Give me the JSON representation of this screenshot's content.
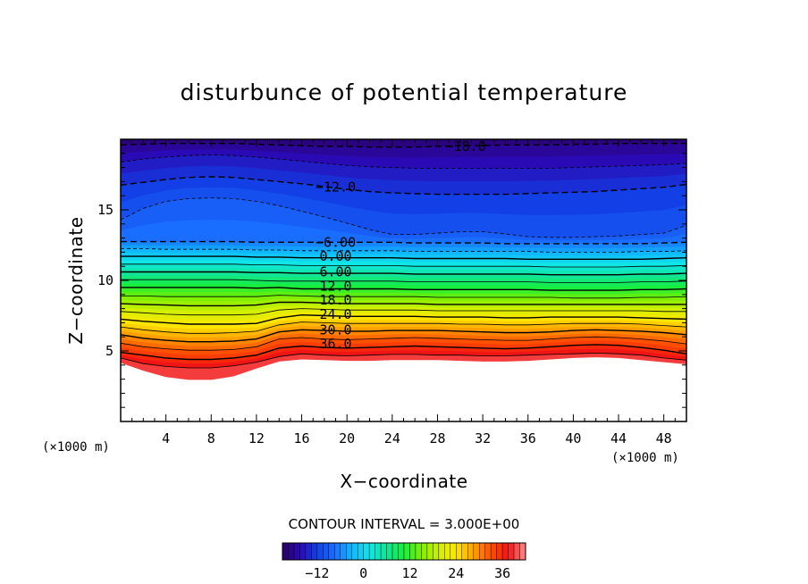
{
  "chart_data": {
    "type": "heatmap",
    "title": "disturbunce of potential temperature",
    "xlabel": "X−coordinate",
    "ylabel": "Z−coordinate",
    "x_unit": "(×1000 m)",
    "y_unit": "(×1000 m)",
    "xlim": [
      0,
      50
    ],
    "ylim": [
      0,
      20
    ],
    "x_ticks": [
      4,
      8,
      12,
      16,
      20,
      24,
      28,
      32,
      36,
      40,
      44,
      48
    ],
    "y_ticks": [
      5,
      10,
      15
    ],
    "contour_interval_text": "CONTOUR INTERVAL = 3.000E+00",
    "contour_labels": [
      {
        "text": "−18.0",
        "x": 30.5,
        "z": 19.5
      },
      {
        "text": "−12.0",
        "x": 19.0,
        "z": 16.6
      },
      {
        "text": "−6.00",
        "x": 19.0,
        "z": 12.7
      },
      {
        "text": "0.00",
        "x": 19.0,
        "z": 11.7
      },
      {
        "text": "6.00",
        "x": 19.0,
        "z": 10.6
      },
      {
        "text": "12.0",
        "x": 19.0,
        "z": 9.6
      },
      {
        "text": "18.0",
        "x": 19.0,
        "z": 8.6
      },
      {
        "text": "24.0",
        "x": 19.0,
        "z": 7.6
      },
      {
        "text": "30.0",
        "x": 19.0,
        "z": 6.5
      },
      {
        "text": "36.0",
        "x": 19.0,
        "z": 5.5
      }
    ],
    "profile_x": [
      0,
      2,
      4,
      6,
      8,
      10,
      12,
      14,
      16,
      18,
      20,
      22,
      24,
      26,
      28,
      30,
      32,
      34,
      36,
      38,
      40,
      42,
      44,
      46,
      48,
      50
    ],
    "contour_lines": [
      {
        "level": -18,
        "z": [
          19.6,
          19.65,
          19.7,
          19.7,
          19.7,
          19.7,
          19.65,
          19.6,
          19.55,
          19.5,
          19.5,
          19.45,
          19.45,
          19.45,
          19.5,
          19.55,
          19.55,
          19.6,
          19.6,
          19.6,
          19.65,
          19.65,
          19.7,
          19.7,
          19.7,
          19.7
        ]
      },
      {
        "level": -15,
        "z": [
          18.4,
          18.6,
          18.75,
          18.85,
          18.9,
          18.85,
          18.75,
          18.6,
          18.45,
          18.3,
          18.15,
          18.05,
          18.0,
          17.95,
          17.95,
          17.95,
          17.95,
          17.95,
          17.95,
          17.95,
          18.0,
          18.05,
          18.1,
          18.15,
          18.2,
          18.3
        ]
      },
      {
        "level": -12,
        "z": [
          16.75,
          16.95,
          17.15,
          17.3,
          17.35,
          17.3,
          17.15,
          17.0,
          16.85,
          16.65,
          16.45,
          16.3,
          16.2,
          16.15,
          16.1,
          16.1,
          16.1,
          16.1,
          16.15,
          16.2,
          16.25,
          16.3,
          16.4,
          16.5,
          16.6,
          16.8
        ]
      },
      {
        "level": -9,
        "z": [
          14.3,
          15.1,
          15.6,
          15.8,
          15.85,
          15.8,
          15.6,
          15.3,
          14.9,
          14.5,
          14.05,
          13.6,
          13.25,
          13.25,
          13.35,
          13.45,
          13.45,
          13.3,
          13.1,
          13.05,
          13.05,
          13.1,
          13.15,
          13.25,
          13.35,
          13.9
        ]
      },
      {
        "level": -6,
        "z": [
          12.75,
          12.75,
          12.75,
          12.75,
          12.75,
          12.75,
          12.7,
          12.7,
          12.7,
          12.7,
          12.7,
          12.7,
          12.7,
          12.65,
          12.65,
          12.65,
          12.65,
          12.6,
          12.6,
          12.6,
          12.6,
          12.6,
          12.6,
          12.6,
          12.65,
          12.7
        ]
      },
      {
        "level": -3,
        "z": [
          12.25,
          12.25,
          12.2,
          12.2,
          12.2,
          12.2,
          12.15,
          12.15,
          12.1,
          12.1,
          12.1,
          12.1,
          12.1,
          12.05,
          12.05,
          12.05,
          12.05,
          12.05,
          12.05,
          12.0,
          12.0,
          12.0,
          12.0,
          12.05,
          12.05,
          12.1
        ]
      },
      {
        "level": 0,
        "z": [
          11.7,
          11.7,
          11.7,
          11.7,
          11.7,
          11.7,
          11.65,
          11.65,
          11.6,
          11.6,
          11.6,
          11.6,
          11.6,
          11.55,
          11.55,
          11.55,
          11.55,
          11.55,
          11.5,
          11.5,
          11.5,
          11.5,
          11.5,
          11.5,
          11.55,
          11.6
        ]
      },
      {
        "level": 3,
        "z": [
          11.15,
          11.15,
          11.15,
          11.15,
          11.15,
          11.15,
          11.1,
          11.1,
          11.05,
          11.05,
          11.05,
          11.05,
          11.05,
          11.0,
          11.0,
          11.0,
          11.0,
          11.0,
          11.0,
          10.95,
          10.95,
          10.95,
          10.95,
          11.0,
          11.0,
          11.05
        ]
      },
      {
        "level": 6,
        "z": [
          10.6,
          10.6,
          10.6,
          10.6,
          10.6,
          10.6,
          10.55,
          10.55,
          10.5,
          10.5,
          10.5,
          10.5,
          10.5,
          10.45,
          10.45,
          10.45,
          10.45,
          10.45,
          10.45,
          10.4,
          10.4,
          10.4,
          10.4,
          10.45,
          10.45,
          10.5
        ]
      },
      {
        "level": 9,
        "z": [
          10.05,
          10.05,
          10.05,
          10.05,
          10.05,
          10.05,
          10.0,
          9.95,
          9.95,
          9.95,
          9.95,
          9.95,
          9.95,
          9.9,
          9.9,
          9.9,
          9.9,
          9.9,
          9.9,
          9.85,
          9.85,
          9.85,
          9.85,
          9.9,
          9.9,
          9.95
        ]
      },
      {
        "level": 12,
        "z": [
          9.5,
          9.5,
          9.5,
          9.5,
          9.5,
          9.5,
          9.45,
          9.5,
          9.4,
          9.4,
          9.4,
          9.4,
          9.4,
          9.35,
          9.35,
          9.35,
          9.35,
          9.35,
          9.35,
          9.3,
          9.3,
          9.3,
          9.3,
          9.35,
          9.35,
          9.4
        ]
      },
      {
        "level": 15,
        "z": [
          8.9,
          8.9,
          8.85,
          8.85,
          8.85,
          8.85,
          8.85,
          8.95,
          8.9,
          8.85,
          8.85,
          8.85,
          8.85,
          8.85,
          8.8,
          8.8,
          8.8,
          8.8,
          8.8,
          8.8,
          8.75,
          8.75,
          8.75,
          8.8,
          8.8,
          8.85
        ]
      },
      {
        "level": 18,
        "z": [
          8.35,
          8.3,
          8.25,
          8.2,
          8.2,
          8.2,
          8.25,
          8.45,
          8.45,
          8.4,
          8.35,
          8.35,
          8.35,
          8.35,
          8.3,
          8.3,
          8.3,
          8.3,
          8.3,
          8.3,
          8.3,
          8.3,
          8.3,
          8.3,
          8.3,
          8.3
        ]
      },
      {
        "level": 21,
        "z": [
          7.8,
          7.7,
          7.6,
          7.55,
          7.55,
          7.55,
          7.6,
          7.9,
          8.0,
          7.95,
          7.9,
          7.9,
          7.9,
          7.9,
          7.85,
          7.85,
          7.85,
          7.85,
          7.85,
          7.85,
          7.85,
          7.85,
          7.85,
          7.85,
          7.8,
          7.8
        ]
      },
      {
        "level": 24,
        "z": [
          7.25,
          7.1,
          7.0,
          6.9,
          6.9,
          6.9,
          6.95,
          7.35,
          7.55,
          7.5,
          7.45,
          7.45,
          7.45,
          7.45,
          7.4,
          7.4,
          7.4,
          7.35,
          7.35,
          7.4,
          7.4,
          7.4,
          7.4,
          7.35,
          7.3,
          7.25
        ]
      },
      {
        "level": 27,
        "z": [
          6.7,
          6.5,
          6.35,
          6.25,
          6.25,
          6.3,
          6.4,
          6.85,
          7.05,
          7.0,
          6.95,
          6.95,
          6.95,
          6.95,
          6.95,
          6.9,
          6.9,
          6.85,
          6.85,
          6.9,
          6.95,
          6.95,
          6.95,
          6.9,
          6.8,
          6.7
        ]
      },
      {
        "level": 30,
        "z": [
          6.15,
          5.9,
          5.75,
          5.65,
          5.65,
          5.7,
          5.85,
          6.35,
          6.5,
          6.45,
          6.4,
          6.4,
          6.45,
          6.45,
          6.45,
          6.4,
          6.35,
          6.3,
          6.3,
          6.35,
          6.45,
          6.5,
          6.45,
          6.4,
          6.3,
          6.15
        ]
      },
      {
        "level": 33,
        "z": [
          5.55,
          5.3,
          5.15,
          5.05,
          5.05,
          5.1,
          5.3,
          5.85,
          5.95,
          5.85,
          5.8,
          5.85,
          5.9,
          5.95,
          5.9,
          5.85,
          5.8,
          5.75,
          5.75,
          5.85,
          5.95,
          6.0,
          5.95,
          5.85,
          5.7,
          5.5
        ]
      },
      {
        "level": 36,
        "z": [
          4.9,
          4.7,
          4.5,
          4.4,
          4.4,
          4.5,
          4.7,
          5.2,
          5.35,
          5.25,
          5.2,
          5.25,
          5.3,
          5.35,
          5.3,
          5.25,
          5.2,
          5.15,
          5.2,
          5.3,
          5.4,
          5.45,
          5.4,
          5.25,
          5.05,
          4.8
        ]
      },
      {
        "level": 39,
        "z": [
          4.5,
          4.1,
          3.9,
          3.8,
          3.8,
          3.95,
          4.2,
          4.6,
          4.8,
          4.7,
          4.65,
          4.7,
          4.75,
          4.75,
          4.7,
          4.7,
          4.65,
          4.65,
          4.7,
          4.75,
          4.8,
          4.85,
          4.8,
          4.7,
          4.5,
          4.35
        ]
      }
    ],
    "lower_boundary_z": [
      4.15,
      3.6,
      3.15,
      2.95,
      2.95,
      3.2,
      3.75,
      4.25,
      4.4,
      4.35,
      4.3,
      4.3,
      4.35,
      4.35,
      4.35,
      4.3,
      4.25,
      4.25,
      4.3,
      4.4,
      4.5,
      4.55,
      4.5,
      4.35,
      4.2,
      4.05
    ],
    "colorbar": {
      "vmin": -21,
      "vmax": 42,
      "tick_labels": [
        "−12",
        "0",
        "12",
        "24",
        "36"
      ],
      "tick_values": [
        -12,
        0,
        12,
        24,
        36
      ]
    },
    "colormap": [
      "#2a0064",
      "#2a0ab4",
      "#1240e6",
      "#1a6eff",
      "#10b8ff",
      "#10e6e6",
      "#10e696",
      "#18ee3c",
      "#7ef000",
      "#d2f000",
      "#ffe600",
      "#ffa000",
      "#ff5000",
      "#f01414",
      "#ff8c8c"
    ]
  }
}
